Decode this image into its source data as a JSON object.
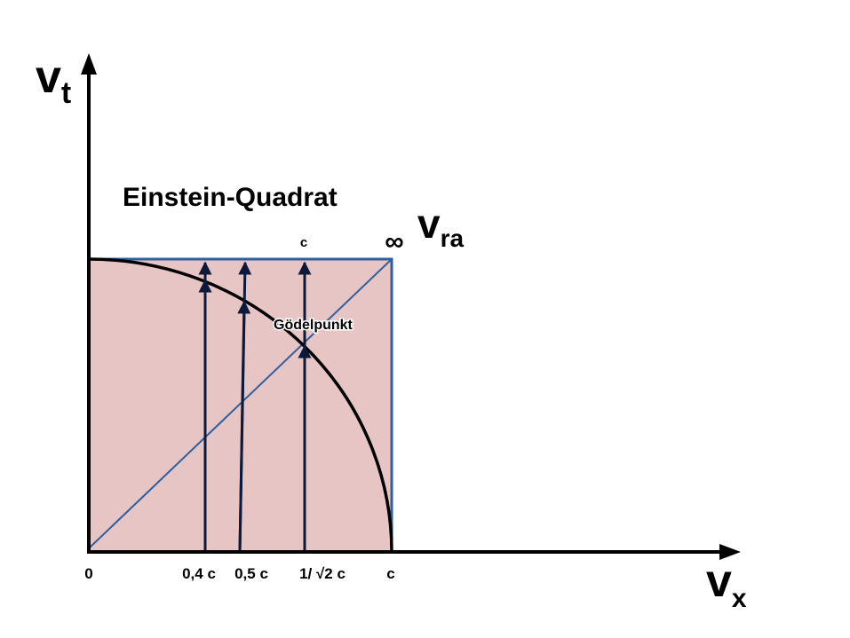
{
  "axes": {
    "y_label": "v",
    "y_subscript": "t",
    "x_label": "v",
    "x_subscript": "x"
  },
  "title": "Einstein-Quadrat",
  "top_labels": [
    "c",
    "∞"
  ],
  "v_ra": {
    "label": "v",
    "subscript": "ra"
  },
  "point_label": "Gödelpunkt",
  "x_labels": [
    "0",
    "0,4 c",
    "0,5 c",
    "1/ √2 c",
    "c"
  ]
}
